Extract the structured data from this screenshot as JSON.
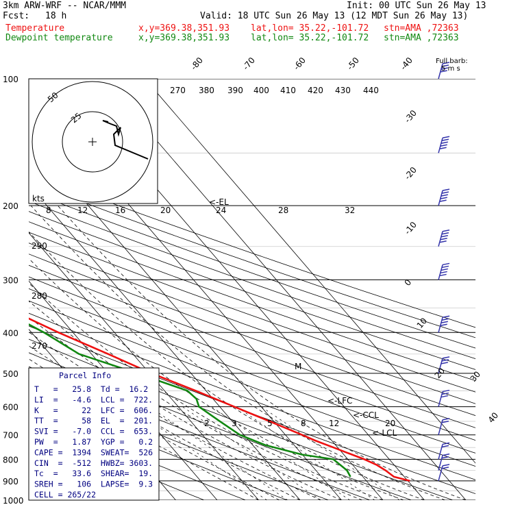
{
  "header": {
    "model": "3km ARW-WRF -- NCAR/MMM",
    "init": "Init: 00 UTC Sun 26 May 13",
    "fcst_label": "Fcst:",
    "fcst_value": "18 h",
    "valid": "Valid: 18 UTC Sun 26 May 13 (12 MDT Sun 26 May 13)",
    "temp_line": {
      "name": "Temperature",
      "xy": "x,y=369.38,351.93",
      "latlon": "lat,lon= 35.22,-101.72",
      "stn": "stn=AMA ,72363"
    },
    "dew_line": {
      "name": "Dewpoint temperature",
      "xy": "x,y=369.38,351.93",
      "latlon": "lat,lon= 35.22,-101.72",
      "stn": "stn=AMA ,72363"
    }
  },
  "colors": {
    "temperature": "#ee1111",
    "dewpoint": "#118811",
    "parcel": "#000080",
    "barb": "#3333aa",
    "grid": "#000000"
  },
  "barb_key": {
    "line1": "Full barb:",
    "line2": "5 m s"
  },
  "hodograph": {
    "unit_label": "kts",
    "ring_labels": [
      "25",
      "50"
    ]
  },
  "theta_e_labels": [
    "270",
    "380",
    "390",
    "400",
    "410",
    "420",
    "430",
    "440"
  ],
  "mixing_ratio_labels": [
    "8",
    "12",
    "16",
    "20",
    "24",
    "28",
    "32"
  ],
  "skew_temp_labels": [
    "-80",
    "-70",
    "-60",
    "-50",
    "-40",
    "-30",
    "-20",
    "-10",
    "0",
    "10",
    "20",
    "30",
    "40"
  ],
  "left_theta_labels": [
    "290",
    "280",
    "270"
  ],
  "lower_mr_labels": [
    "2",
    "3",
    "5",
    "8",
    "12",
    "20"
  ],
  "level_markers": {
    "el": "EL",
    "lfc": "LFC",
    "ccl": "CCL",
    "lcl": "LCL",
    "m": "M"
  },
  "parcel_info": {
    "title": "Parcel Info",
    "rows": [
      "T   =   25.8  Td =  16.2",
      "LI  =   -4.6  LCL =  722.",
      "K   =     22  LFC =  606.",
      "TT  =     58  EL  =  201.",
      "SVI =   -7.0  CCL =  653.",
      "PW  =   1.87  YGP =   0.2",
      "CAPE =  1394  SWEAT=  526",
      "CIN  =  -512  HWBZ= 3603.",
      "Tc  =   33.6  SHEAR=  19.",
      "SREH =   106  LAPSE=  9.3",
      "CELL = 265/22"
    ]
  },
  "chart_data": {
    "type": "skew-T log-P sounding",
    "pressure_levels_hpa": [
      "100",
      "200",
      "300",
      "400",
      "500",
      "600",
      "700",
      "800",
      "900",
      "1000"
    ],
    "y_scale": "log pressure",
    "series": [
      {
        "name": "Temperature",
        "pressure_hpa": [
          900,
          880,
          850,
          825,
          800,
          775,
          750,
          722,
          700,
          650,
          600,
          550,
          500,
          450,
          400,
          350,
          300,
          250,
          200,
          175,
          150,
          125,
          100
        ],
        "temp_c": [
          30.5,
          27.5,
          26.8,
          25.8,
          24.0,
          21.5,
          19.0,
          16.0,
          14.0,
          9.0,
          3.5,
          -2.5,
          -9.5,
          -16.0,
          -23.5,
          -31.0,
          -39.5,
          -49.5,
          -59.0,
          -62.0,
          -63.0,
          -61.5,
          -59.0
        ]
      },
      {
        "name": "Dewpoint temperature",
        "pressure_hpa": [
          880,
          850,
          800,
          780,
          740,
          700,
          650,
          600,
          575,
          550,
          500,
          450,
          400,
          350,
          300,
          250,
          200,
          150,
          100
        ],
        "temp_c": [
          17.0,
          17.5,
          16.5,
          10.0,
          3.0,
          -1.0,
          -3.0,
          -5.0,
          -4.0,
          -4.5,
          -13.0,
          -23.0,
          -27.0,
          -33.0,
          -40.0,
          -50.0,
          -64.0,
          -81.0,
          -92.0
        ]
      }
    ],
    "wind_barbs": [
      {
        "p": 100,
        "dir_deg": 265,
        "speed_ms": 20
      },
      {
        "p": 150,
        "dir_deg": 265,
        "speed_ms": 25
      },
      {
        "p": 200,
        "dir_deg": 265,
        "speed_ms": 25
      },
      {
        "p": 250,
        "dir_deg": 265,
        "speed_ms": 25
      },
      {
        "p": 300,
        "dir_deg": 265,
        "speed_ms": 25
      },
      {
        "p": 400,
        "dir_deg": 265,
        "speed_ms": 20
      },
      {
        "p": 500,
        "dir_deg": 260,
        "speed_ms": 15
      },
      {
        "p": 600,
        "dir_deg": 250,
        "speed_ms": 15
      },
      {
        "p": 700,
        "dir_deg": 230,
        "speed_ms": 10
      },
      {
        "p": 800,
        "dir_deg": 200,
        "speed_ms": 10
      },
      {
        "p": 850,
        "dir_deg": 190,
        "speed_ms": 10
      },
      {
        "p": 900,
        "dir_deg": 180,
        "speed_ms": 10
      }
    ]
  }
}
